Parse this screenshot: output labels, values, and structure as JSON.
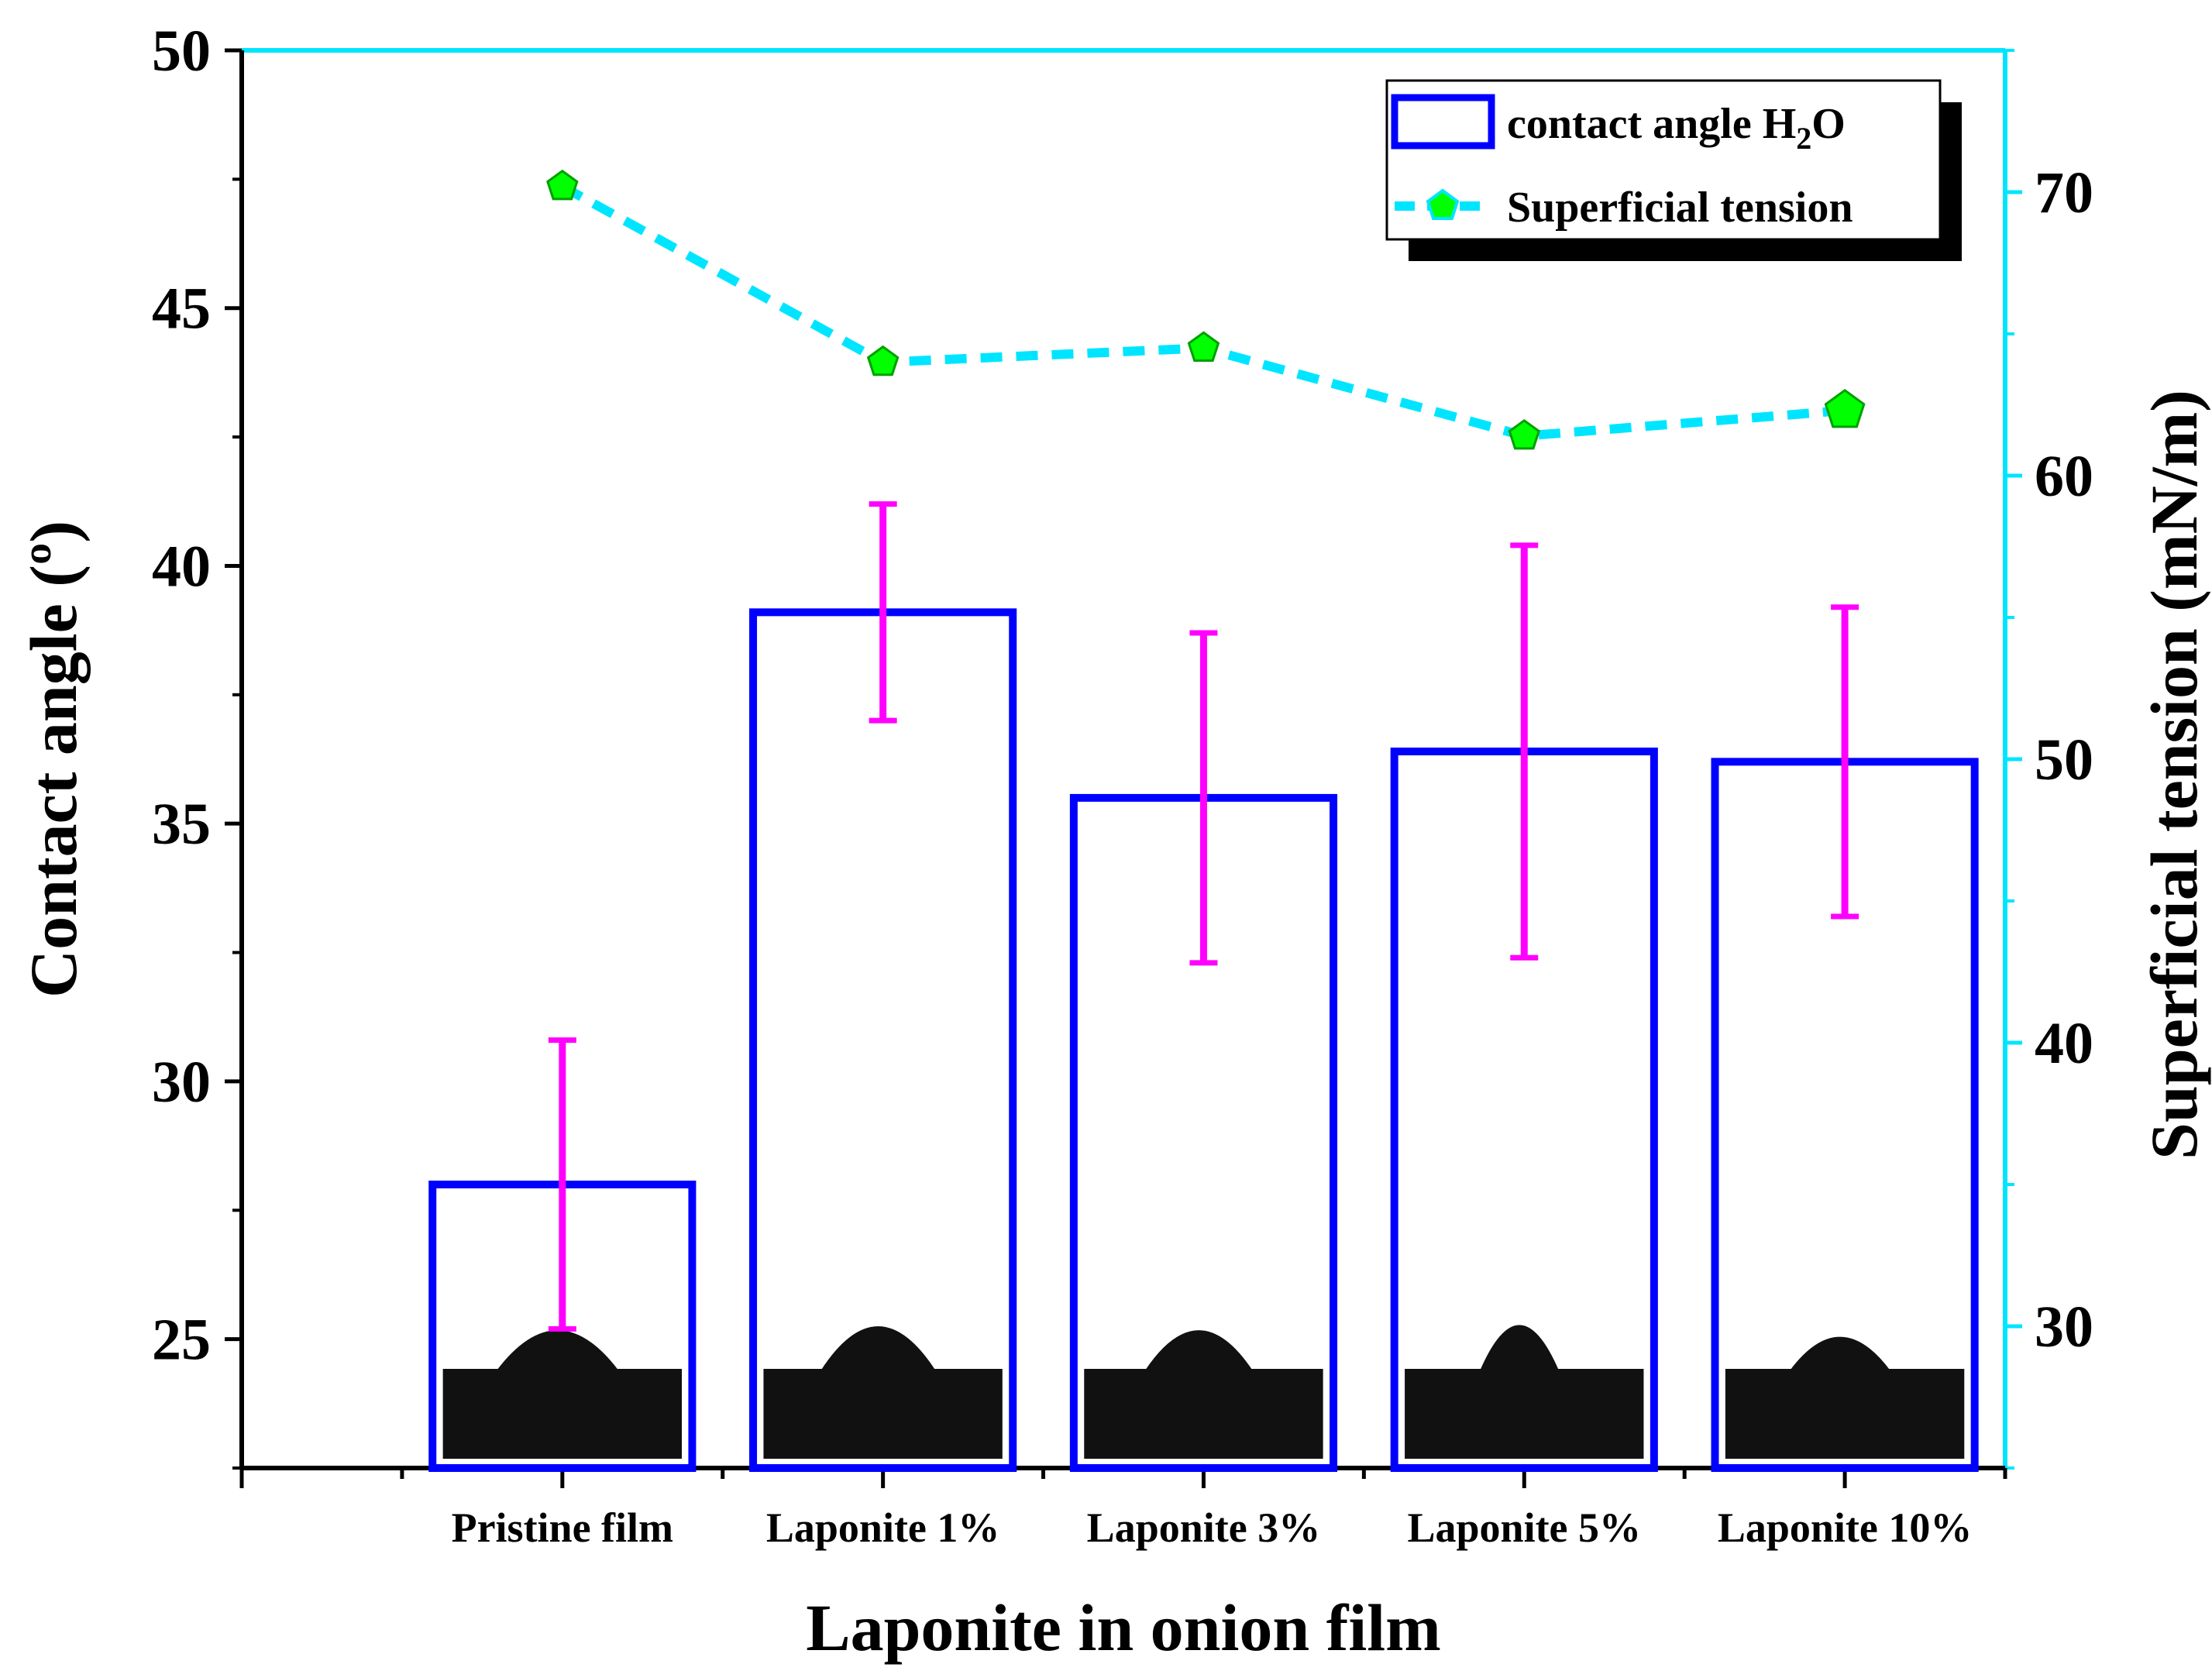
{
  "chart_data": {
    "type": "bar",
    "xlabel": "Laponite in onion film",
    "ylabel": "Contact angle (º)",
    "ylabel_right": "Superficial tension (mN/m)",
    "categories": [
      "Pristine film",
      "Laponite 1%",
      "Laponite 3%",
      "Laponite 5%",
      "Laponite 10%"
    ],
    "ylim": [
      22.5,
      50
    ],
    "yticks": [
      "25",
      "30",
      "35",
      "40",
      "45",
      "50"
    ],
    "ylim_right": [
      25,
      75
    ],
    "yticks_right": [
      "30",
      "40",
      "50",
      "60",
      "70"
    ],
    "series": [
      {
        "name": "contact angle H",
        "name_subscript": "2",
        "name_suffix": "O",
        "type": "bar",
        "axis": "left",
        "values": [
          28.0,
          39.1,
          35.5,
          36.4,
          36.2
        ],
        "error": [
          2.8,
          2.1,
          3.2,
          4.0,
          3.0
        ],
        "color": "#0000ff",
        "error_color": "#ff00ff"
      },
      {
        "name": "Superficial tension",
        "type": "line",
        "axis": "right",
        "values": [
          70.2,
          64.0,
          64.5,
          61.4,
          62.3
        ],
        "color": "#00e5ff",
        "marker_color": "#00ff00"
      }
    ],
    "legend_position": "top-right",
    "grid": false
  }
}
